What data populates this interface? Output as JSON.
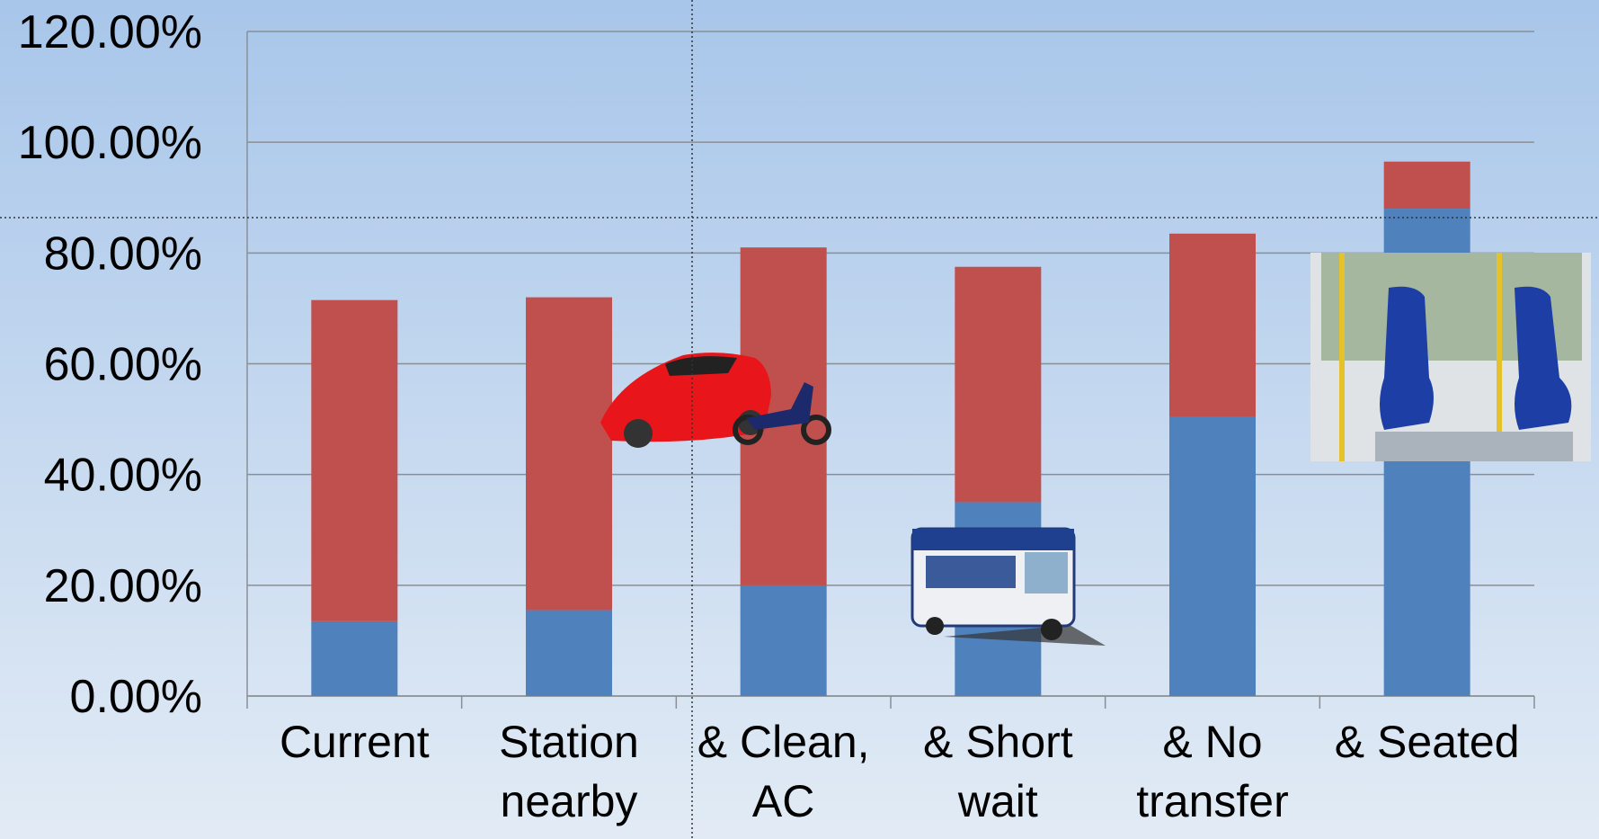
{
  "chart_data": {
    "type": "stacked-bar",
    "categories": [
      "Current",
      "Station nearby",
      "& Clean, AC",
      "& Short wait",
      "& No transfer",
      "& Seated"
    ],
    "series": [
      {
        "color": "#4f81bd",
        "values": [
          13.5,
          15.5,
          20,
          35,
          50.5,
          88
        ]
      },
      {
        "color": "#c0504d",
        "values": [
          58,
          56.5,
          61,
          42.5,
          33,
          8.5
        ]
      }
    ],
    "ylim": [
      0,
      120
    ],
    "yticks": [
      {
        "value": 0,
        "label": "0.00%"
      },
      {
        "value": 20,
        "label": "20.00%"
      },
      {
        "value": 40,
        "label": "40.00%"
      },
      {
        "value": 60,
        "label": "60.00%"
      },
      {
        "value": 80,
        "label": "80.00%"
      },
      {
        "value": 100,
        "label": "100.00%"
      },
      {
        "value": 120,
        "label": "120.00%"
      }
    ],
    "grid": true
  }
}
